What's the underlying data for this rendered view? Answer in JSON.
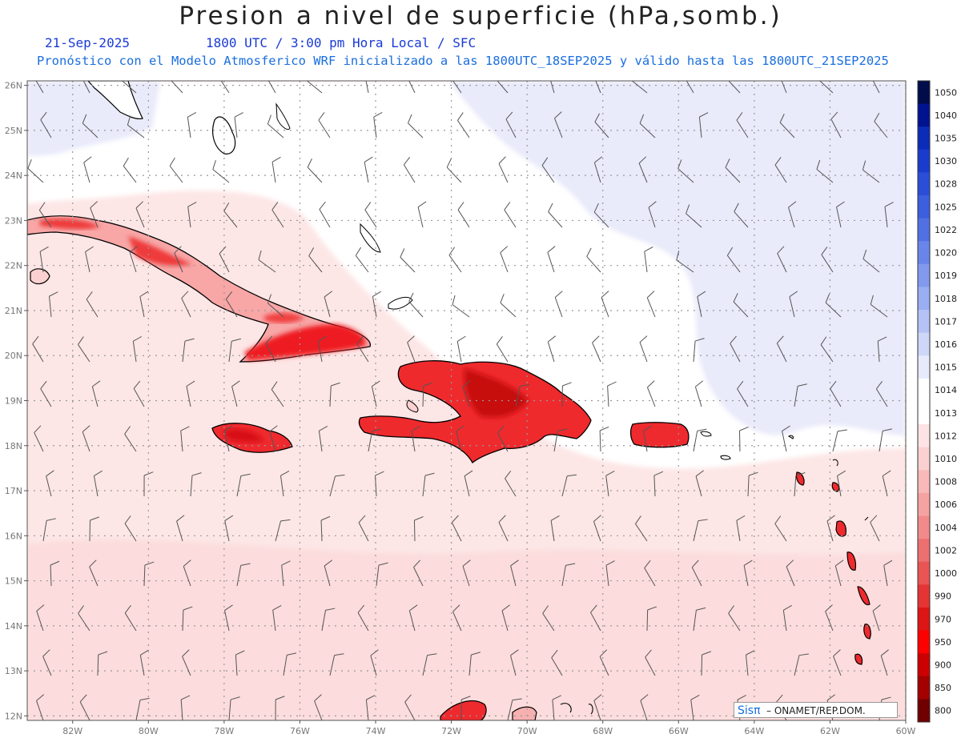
{
  "header": {
    "title": "Presion a nivel de superficie (hPa,somb.)",
    "date": "21-Sep-2025",
    "time_line": "1800 UTC / 3:00 pm Hora Local / SFC",
    "model_line": "Pronóstico con el Modelo Atmosferico WRF inicializado a las 1800UTC_18SEP2025 y válido hasta las  1800UTC_21SEP2025"
  },
  "map": {
    "lat_labels": [
      "26N",
      "25N",
      "24N",
      "23N",
      "22N",
      "21N",
      "20N",
      "19N",
      "18N",
      "17N",
      "16N",
      "15N",
      "14N",
      "13N",
      "12N"
    ],
    "lon_labels": [
      "82W",
      "80W",
      "78W",
      "76W",
      "74W",
      "72W",
      "70W",
      "68W",
      "66W",
      "64W",
      "62W",
      "60W"
    ],
    "lon_values": [
      -82,
      -80,
      -78,
      -76,
      -74,
      -72,
      -70,
      -68,
      -66,
      -64,
      -62,
      -60
    ],
    "lat_values": [
      26,
      25,
      24,
      23,
      22,
      21,
      20,
      19,
      18,
      17,
      16,
      15,
      14,
      13,
      12
    ],
    "colors": {
      "ocean_base": "#fde6e6",
      "ocean_light": "#ffffff",
      "high_pressure": "#e8e9fa",
      "land_low": "#ee1e22",
      "land_mid": "#f9a0a0",
      "coast": "#000000",
      "grid": "#999999",
      "wind": "#555555"
    }
  },
  "colorbar": {
    "levels": [
      "1050",
      "1040",
      "1035",
      "1030",
      "1028",
      "1025",
      "1022",
      "1020",
      "1019",
      "1018",
      "1017",
      "1016",
      "1015",
      "1014",
      "1013",
      "1012",
      "1010",
      "1008",
      "1006",
      "1004",
      "1002",
      "1000",
      "990",
      "970",
      "950",
      "900",
      "850",
      "800"
    ],
    "colors": [
      "#000d4a",
      "#00128f",
      "#0a2cb8",
      "#1a3ccc",
      "#2a4ed6",
      "#3b5fde",
      "#5170e4",
      "#6a85ea",
      "#8299ee",
      "#9aaef2",
      "#b5c2f5",
      "#cfd7f8",
      "#e6eafa",
      "#ffffff",
      "#ffffff",
      "#fde3e3",
      "#fbd0d0",
      "#f8b9b9",
      "#f5a2a2",
      "#f18b8b",
      "#ed7070",
      "#e95454",
      "#e43434",
      "#dd1515",
      "#ff0000",
      "#cc0000",
      "#a30000",
      "#700000"
    ]
  },
  "credit": {
    "brand": "Sisπ",
    "org": "– ONAMET/REP.DOM."
  }
}
